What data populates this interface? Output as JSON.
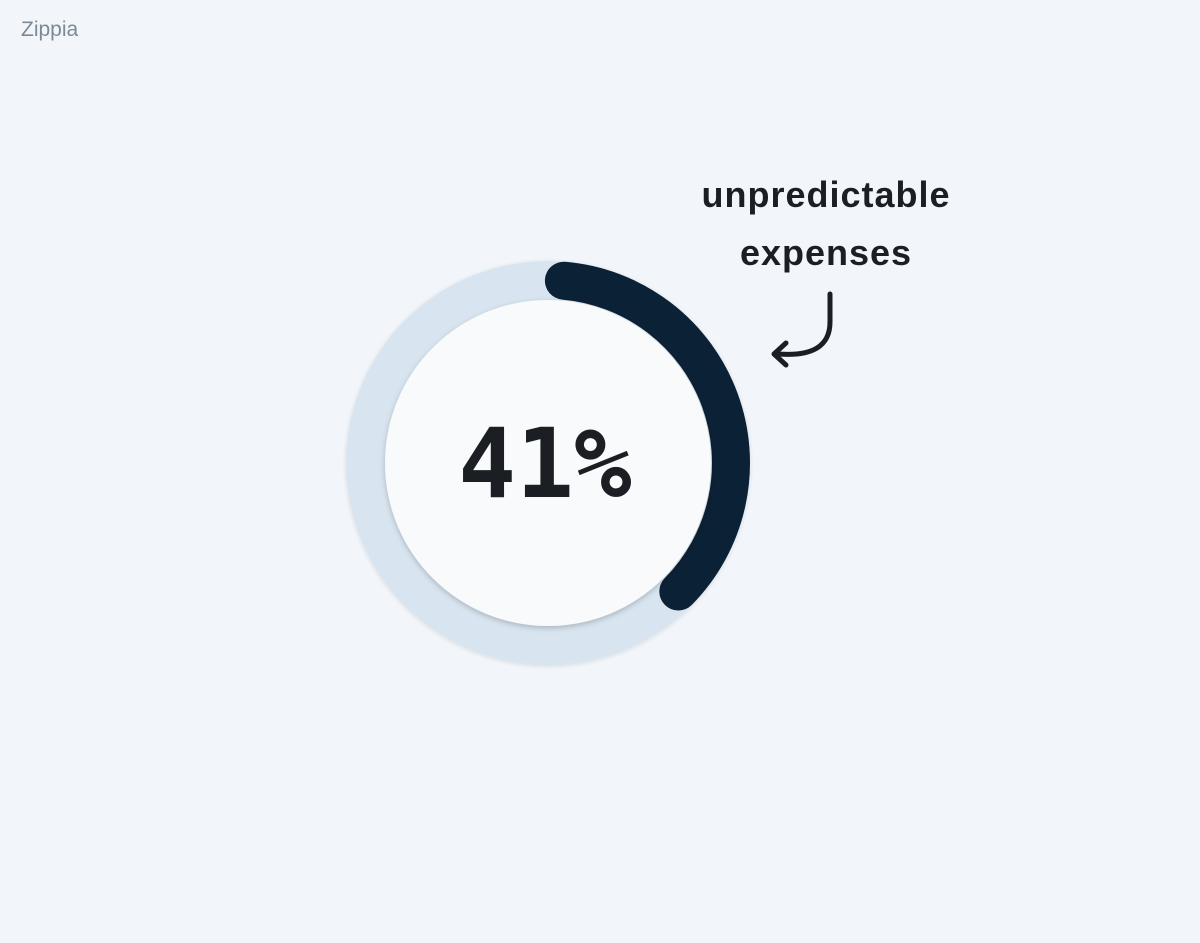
{
  "brand": "Zippia",
  "callout": {
    "lines": [
      "unpredictable",
      "expenses"
    ]
  },
  "colors": {
    "background": "#f2f6fa",
    "track": "#d8e5f0",
    "progress": "#0b2135",
    "inner": "#f8fafc",
    "text": "#1b1f24"
  },
  "icons": {
    "arrow": "curved-arrow-icon"
  },
  "chart_data": {
    "type": "pie",
    "variant": "donut-progress",
    "value": 41,
    "max": 100,
    "label": "41%",
    "annotation": "unpredictable expenses"
  }
}
